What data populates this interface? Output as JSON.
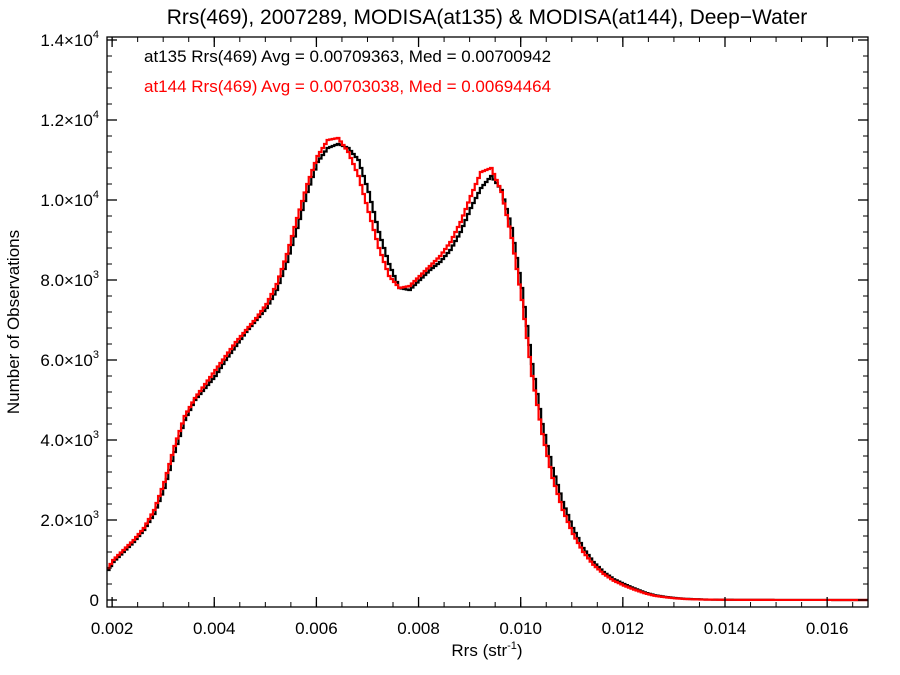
{
  "chart_data": {
    "type": "line",
    "title": "Rrs(469), 2007289, MODISA(at135) & MODISA(at144), Deep−Water",
    "xlabel": "Rrs (str",
    "xlabel_exp": "-1",
    "xlabel_close": ")",
    "ylabel": "Number of Observations",
    "xlim": [
      0.0019,
      0.0168
    ],
    "ylim": [
      0,
      14000
    ],
    "grid": false,
    "legend_placement": "top-left",
    "x_ticks": [
      {
        "value": 0.002,
        "label": "0.002"
      },
      {
        "value": 0.004,
        "label": "0.004"
      },
      {
        "value": 0.006,
        "label": "0.006"
      },
      {
        "value": 0.008,
        "label": "0.008"
      },
      {
        "value": 0.01,
        "label": "0.010"
      },
      {
        "value": 0.012,
        "label": "0.012"
      },
      {
        "value": 0.014,
        "label": "0.014"
      },
      {
        "value": 0.016,
        "label": "0.016"
      }
    ],
    "y_ticks": [
      {
        "value": 0,
        "mantissa": "0",
        "exponent": ""
      },
      {
        "value": 2000,
        "mantissa": "2.0×10",
        "exponent": "3"
      },
      {
        "value": 4000,
        "mantissa": "4.0×10",
        "exponent": "3"
      },
      {
        "value": 6000,
        "mantissa": "6.0×10",
        "exponent": "3"
      },
      {
        "value": 8000,
        "mantissa": "8.0×10",
        "exponent": "3"
      },
      {
        "value": 10000,
        "mantissa": "1.0×10",
        "exponent": "4"
      },
      {
        "value": 12000,
        "mantissa": "1.2×10",
        "exponent": "4"
      },
      {
        "value": 14000,
        "mantissa": "1.4×10",
        "exponent": "4"
      }
    ],
    "series": [
      {
        "name": "at135",
        "color": "#000000",
        "annotation": "at135 Rrs(469) Avg = 0.00709363, Med = 0.00700942",
        "points": [
          [
            0.0019,
            750
          ],
          [
            0.002,
            950
          ],
          [
            0.0022,
            1200
          ],
          [
            0.0024,
            1450
          ],
          [
            0.0026,
            1750
          ],
          [
            0.0028,
            2150
          ],
          [
            0.003,
            2800
          ],
          [
            0.0032,
            3700
          ],
          [
            0.0034,
            4500
          ],
          [
            0.0036,
            5000
          ],
          [
            0.0038,
            5300
          ],
          [
            0.004,
            5600
          ],
          [
            0.0042,
            6000
          ],
          [
            0.0044,
            6350
          ],
          [
            0.0046,
            6700
          ],
          [
            0.0048,
            7000
          ],
          [
            0.005,
            7300
          ],
          [
            0.0052,
            7750
          ],
          [
            0.0054,
            8450
          ],
          [
            0.0056,
            9300
          ],
          [
            0.0058,
            10200
          ],
          [
            0.006,
            10950
          ],
          [
            0.0062,
            11300
          ],
          [
            0.0064,
            11400
          ],
          [
            0.0066,
            11300
          ],
          [
            0.0068,
            11000
          ],
          [
            0.007,
            10200
          ],
          [
            0.0072,
            9200
          ],
          [
            0.0074,
            8400
          ],
          [
            0.0076,
            7800
          ],
          [
            0.0078,
            7750
          ],
          [
            0.008,
            8000
          ],
          [
            0.0082,
            8250
          ],
          [
            0.0084,
            8450
          ],
          [
            0.0086,
            8750
          ],
          [
            0.0088,
            9200
          ],
          [
            0.009,
            9800
          ],
          [
            0.0092,
            10300
          ],
          [
            0.0094,
            10600
          ],
          [
            0.0096,
            10250
          ],
          [
            0.0098,
            9300
          ],
          [
            0.01,
            7800
          ],
          [
            0.0102,
            5900
          ],
          [
            0.0104,
            4400
          ],
          [
            0.0106,
            3300
          ],
          [
            0.0108,
            2450
          ],
          [
            0.011,
            1800
          ],
          [
            0.0112,
            1300
          ],
          [
            0.0114,
            950
          ],
          [
            0.0116,
            700
          ],
          [
            0.0118,
            520
          ],
          [
            0.012,
            400
          ],
          [
            0.0122,
            290
          ],
          [
            0.0124,
            190
          ],
          [
            0.0126,
            120
          ],
          [
            0.0128,
            80
          ],
          [
            0.013,
            50
          ],
          [
            0.0132,
            30
          ],
          [
            0.0134,
            20
          ],
          [
            0.0136,
            12
          ],
          [
            0.014,
            6
          ],
          [
            0.0145,
            3
          ],
          [
            0.015,
            2
          ],
          [
            0.016,
            1
          ],
          [
            0.0168,
            0
          ]
        ]
      },
      {
        "name": "at144",
        "color": "#ff0000",
        "annotation": "at144 Rrs(469) Avg = 0.00703038, Med = 0.00694464",
        "points": [
          [
            0.0019,
            800
          ],
          [
            0.002,
            1000
          ],
          [
            0.0022,
            1250
          ],
          [
            0.0024,
            1500
          ],
          [
            0.0026,
            1800
          ],
          [
            0.0028,
            2250
          ],
          [
            0.003,
            2950
          ],
          [
            0.0032,
            3850
          ],
          [
            0.0034,
            4600
          ],
          [
            0.0036,
            5050
          ],
          [
            0.0038,
            5400
          ],
          [
            0.004,
            5750
          ],
          [
            0.0042,
            6100
          ],
          [
            0.0044,
            6450
          ],
          [
            0.0046,
            6750
          ],
          [
            0.0048,
            7050
          ],
          [
            0.005,
            7400
          ],
          [
            0.0052,
            7900
          ],
          [
            0.0054,
            8650
          ],
          [
            0.0056,
            9550
          ],
          [
            0.0058,
            10400
          ],
          [
            0.006,
            11100
          ],
          [
            0.0062,
            11500
          ],
          [
            0.0064,
            11550
          ],
          [
            0.0066,
            11200
          ],
          [
            0.0068,
            10600
          ],
          [
            0.007,
            9700
          ],
          [
            0.0072,
            8800
          ],
          [
            0.0074,
            8100
          ],
          [
            0.0076,
            7800
          ],
          [
            0.0078,
            7850
          ],
          [
            0.008,
            8100
          ],
          [
            0.0082,
            8350
          ],
          [
            0.0084,
            8600
          ],
          [
            0.0086,
            8950
          ],
          [
            0.0088,
            9450
          ],
          [
            0.009,
            10100
          ],
          [
            0.0092,
            10700
          ],
          [
            0.0094,
            10800
          ],
          [
            0.0096,
            10200
          ],
          [
            0.0098,
            9050
          ],
          [
            0.01,
            7500
          ],
          [
            0.0102,
            5600
          ],
          [
            0.0104,
            4150
          ],
          [
            0.0106,
            3050
          ],
          [
            0.0108,
            2250
          ],
          [
            0.011,
            1650
          ],
          [
            0.0112,
            1200
          ],
          [
            0.0114,
            880
          ],
          [
            0.0116,
            650
          ],
          [
            0.0118,
            480
          ],
          [
            0.012,
            360
          ],
          [
            0.0122,
            260
          ],
          [
            0.0124,
            170
          ],
          [
            0.0126,
            105
          ],
          [
            0.0128,
            70
          ],
          [
            0.013,
            42
          ],
          [
            0.0132,
            25
          ],
          [
            0.0134,
            16
          ],
          [
            0.0136,
            10
          ],
          [
            0.014,
            5
          ],
          [
            0.0145,
            3
          ],
          [
            0.015,
            2
          ],
          [
            0.016,
            1
          ],
          [
            0.0168,
            0
          ]
        ]
      }
    ]
  }
}
